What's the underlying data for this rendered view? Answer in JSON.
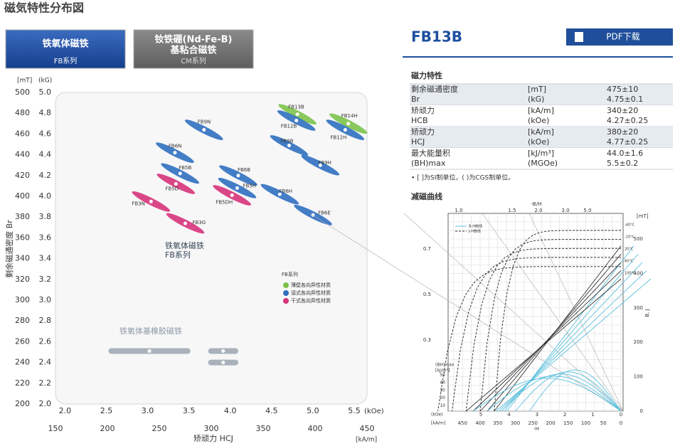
{
  "page_title": "磁気特性分布図",
  "tabs": [
    {
      "lines": [
        "铁氧体磁铁"
      ],
      "subtitle": "FB系列",
      "active": true
    },
    {
      "lines": [
        "钕铁硼(Nd-Fe-B)",
        "基粘合磁铁"
      ],
      "subtitle": "CM系列",
      "active": false
    }
  ],
  "distribution_chart": {
    "y_label": "剩余磁通密度 Br",
    "x_label": "矫顽力 HCJ",
    "y_unit_si": "[mT]",
    "y_unit_cgs": "(kG)",
    "x_unit_si": "[kA/m]",
    "x_unit_cgs": "(kOe)",
    "xlim": [
      150,
      450
    ],
    "ylim": [
      200,
      500
    ],
    "xticks": [
      150,
      200,
      250,
      300,
      350,
      400,
      450
    ],
    "yticks": [
      200,
      220,
      240,
      260,
      280,
      300,
      320,
      340,
      360,
      380,
      400,
      420,
      440,
      460,
      480,
      500
    ],
    "x_cgs_ticks": [
      {
        "value": 2,
        "label": "2.0"
      },
      {
        "value": 2.5,
        "label": "2.5"
      },
      {
        "value": 3,
        "label": "3.0"
      },
      {
        "value": 3.5,
        "label": "3.5"
      },
      {
        "value": 4,
        "label": "4.0"
      },
      {
        "value": 4.5,
        "label": "4.5"
      },
      {
        "value": 5,
        "label": "5.0"
      },
      {
        "value": 5.5,
        "label": "5.5"
      }
    ],
    "y_cgs_ticks": [
      {
        "value": 2,
        "label": "2.0"
      },
      {
        "value": 2.2,
        "label": "2.2"
      },
      {
        "value": 2.4,
        "label": "2.4"
      },
      {
        "value": 2.6,
        "label": "2.6"
      },
      {
        "value": 2.8,
        "label": "2.8"
      },
      {
        "value": 3,
        "label": "3.0"
      },
      {
        "value": 3.2,
        "label": "3.2"
      },
      {
        "value": 3.4,
        "label": "3.4"
      },
      {
        "value": 3.6,
        "label": "3.6"
      },
      {
        "value": 3.8,
        "label": "3.8"
      },
      {
        "value": 4,
        "label": "4.0"
      },
      {
        "value": 4.2,
        "label": "4.2"
      },
      {
        "value": 4.4,
        "label": "4.4"
      },
      {
        "value": 4.6,
        "label": "4.6"
      },
      {
        "value": 4.8,
        "label": "4.8"
      },
      {
        "value": 5,
        "label": "5.0"
      }
    ],
    "grades": [
      {
        "label": "FB13B",
        "hcj": 383,
        "br": 479,
        "color": "#7cc24a"
      },
      {
        "label": "FB12B",
        "hcj": 382,
        "br": 473,
        "color": "#2f6fc0"
      },
      {
        "label": "FB14H",
        "hcj": 432,
        "br": 470,
        "color": "#7cc24a"
      },
      {
        "label": "FB12H",
        "hcj": 429,
        "br": 464,
        "color": "#2f6fc0"
      },
      {
        "label": "FB9N",
        "hcj": 293,
        "br": 464,
        "color": "#2f6fc0"
      },
      {
        "label": "FB6N",
        "hcj": 265,
        "br": 442,
        "color": "#2f6fc0"
      },
      {
        "label": "FB9B",
        "hcj": 375,
        "br": 449,
        "color": "#2f6fc0"
      },
      {
        "label": "FB9H",
        "hcj": 405,
        "br": 430,
        "color": "#2f6fc0"
      },
      {
        "label": "FB5B",
        "hcj": 270,
        "br": 422,
        "color": "#2f6fc0"
      },
      {
        "label": "FB6B",
        "hcj": 326,
        "br": 420,
        "color": "#2f6fc0"
      },
      {
        "label": "FB5D",
        "hcj": 266,
        "br": 412,
        "color": "#d6337a"
      },
      {
        "label": "FB5H",
        "hcj": 325,
        "br": 408,
        "color": "#2f6fc0"
      },
      {
        "label": "FB5DH",
        "hcj": 320,
        "br": 401,
        "color": "#d6337a"
      },
      {
        "label": "FB6H",
        "hcj": 366,
        "br": 402,
        "color": "#2f6fc0"
      },
      {
        "label": "FB3N",
        "hcj": 242,
        "br": 395,
        "color": "#d6337a"
      },
      {
        "label": "FB6E",
        "hcj": 398,
        "br": 382,
        "color": "#2f6fc0"
      },
      {
        "label": "FB3G",
        "hcj": 275,
        "br": 374,
        "color": "#d6337a"
      }
    ],
    "series_note": [
      "铁氧体磁铁",
      "FB系列"
    ],
    "rubber": {
      "label": "铁氧体基橡胶磁铁",
      "color": "#a9b2ba",
      "items": [
        {
          "hcj_min": 201,
          "hcj_max": 280,
          "br": 251
        },
        {
          "hcj_min": 297,
          "hcj_max": 326,
          "br": 251
        },
        {
          "hcj_min": 297,
          "hcj_max": 326,
          "br": 240
        }
      ]
    },
    "legend": {
      "title": "FB系列",
      "items": [
        {
          "label": "薄壁各向异性材质",
          "color": "#7cc24a"
        },
        {
          "label": "湿式各向异性材质",
          "color": "#2f6fc0"
        },
        {
          "label": "干式各向异性材质",
          "color": "#d6337a"
        }
      ]
    }
  },
  "product": {
    "name": "FB13B",
    "pdf_button": "PDF下载",
    "section_title": "磁力特性",
    "table": {
      "rows": [
        {
          "name": [
            "剩余磁通密度",
            "Br"
          ],
          "units": [
            "[mT]",
            "(kG)"
          ],
          "values": [
            "475±10",
            "4.75±0.1"
          ]
        },
        {
          "name": [
            "矫顽力",
            "HCB"
          ],
          "units": [
            "[kA/m]",
            "(kOe)"
          ],
          "values": [
            "340±20",
            "4.27±0.25"
          ]
        },
        {
          "name": [
            "矫顽力",
            "HCJ"
          ],
          "units": [
            "[kA/m]",
            "(kOe)"
          ],
          "values": [
            "380±20",
            "4.77±0.25"
          ]
        },
        {
          "name": [
            "最大能量积",
            "(BH)max"
          ],
          "units": [
            "[kJ/m³]",
            "(MGOe)"
          ],
          "values": [
            "44.0±1.6",
            "5.5±0.2"
          ]
        }
      ]
    },
    "note": "• [ ]为SI制单位，( )为CGS制单位。",
    "curve_title": "减磁曲线",
    "curve_chart": {
      "top_label": "-B/H",
      "top_ticks": [
        {
          "value": 1,
          "label": "1.0"
        },
        {
          "value": 1.5,
          "label": "1.5"
        },
        {
          "value": 2,
          "label": "2.0"
        },
        {
          "value": 3,
          "label": "3.0"
        },
        {
          "value": 5,
          "label": "5.0"
        }
      ],
      "left_ticks": [
        0.7,
        0.5,
        0.3
      ],
      "bh_label": [
        "(BH)max",
        "[kJ/m³]"
      ],
      "bh_ticks": [
        50,
        40,
        30,
        20,
        10
      ],
      "right_unit": "[mT]",
      "right_ticks": [
        500,
        400,
        300,
        200,
        100,
        0
      ],
      "right_label": "B, J",
      "legend": [
        "B-H曲线",
        "J-H曲线"
      ],
      "temperatures": [
        "-40°C",
        "-20°C",
        "20°C",
        "60°C",
        "100°C"
      ],
      "koe_unit": "(kOe)",
      "koe_ticks": [
        5,
        4,
        3,
        2,
        1,
        0
      ],
      "kam_unit": "[kA/m]",
      "kam_ticks": [
        450,
        400,
        350,
        300,
        250,
        200,
        150,
        100,
        50,
        0
      ],
      "x_label": "-H"
    }
  }
}
